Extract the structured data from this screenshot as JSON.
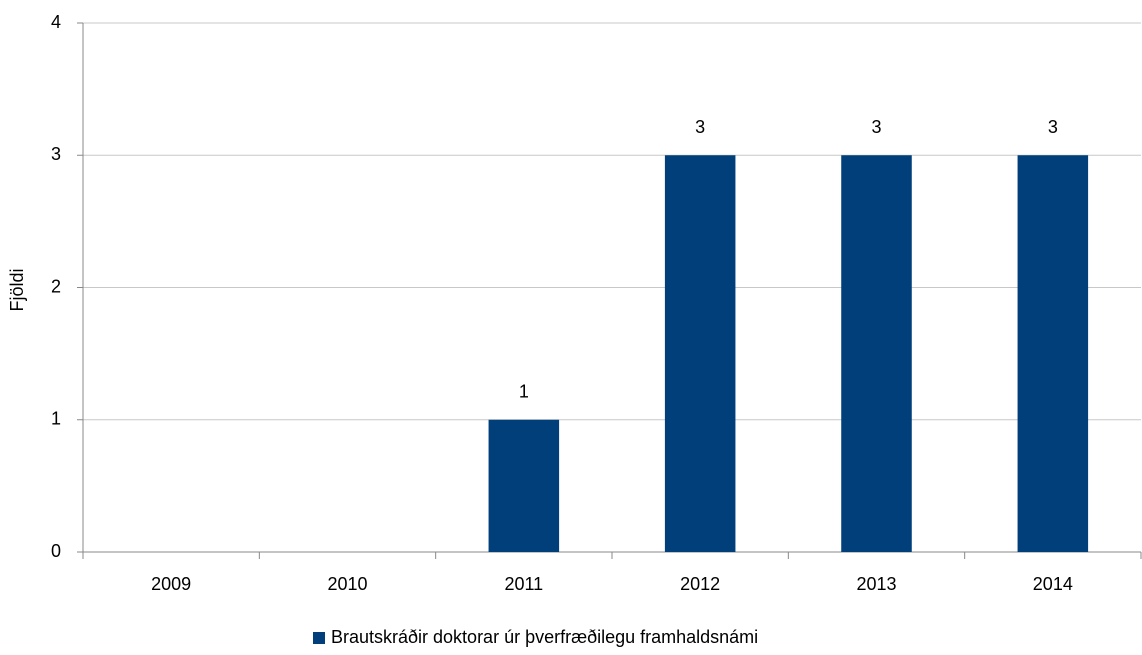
{
  "chart_data": {
    "type": "bar",
    "y_label": "Fjöldi",
    "categories": [
      "2009",
      "2010",
      "2011",
      "2012",
      "2013",
      "2014"
    ],
    "series": [
      {
        "name": "Brautskráðir doktorar úr þverfræðilegu framhaldsnámi",
        "color": "#003f7a",
        "values": [
          null,
          null,
          1,
          3,
          3,
          3
        ]
      }
    ],
    "ylim": [
      0,
      4
    ],
    "yticks": [
      0,
      1,
      2,
      3,
      4
    ],
    "grid": true,
    "data_labels": true,
    "legend": "bottom"
  }
}
